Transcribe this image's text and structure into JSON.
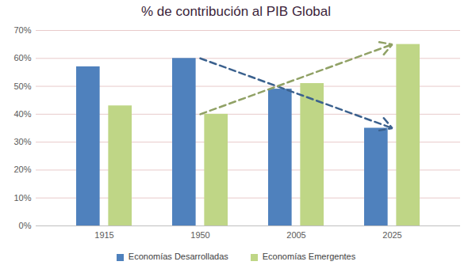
{
  "chart_data": {
    "type": "bar",
    "title": "% de contribución al PIB Global",
    "categories": [
      "1915",
      "1950",
      "2005",
      "2025"
    ],
    "series": [
      {
        "name": "Economías Desarrolladas",
        "color": "#4f81bd",
        "values": [
          57,
          60,
          49,
          35
        ]
      },
      {
        "name": "Economías Emergentes",
        "color": "#bfd686",
        "values": [
          43,
          40,
          51,
          65
        ]
      }
    ],
    "ylim": [
      0,
      70
    ],
    "yticks": [
      {
        "value": 0,
        "label": "0%"
      },
      {
        "value": 10,
        "label": "10%"
      },
      {
        "value": 20,
        "label": "20%"
      },
      {
        "value": 30,
        "label": "30%"
      },
      {
        "value": 40,
        "label": "40%"
      },
      {
        "value": 50,
        "label": "50%"
      },
      {
        "value": 60,
        "label": "60%"
      },
      {
        "value": 70,
        "label": "70%"
      }
    ],
    "grid": true,
    "legend": "bottom"
  }
}
